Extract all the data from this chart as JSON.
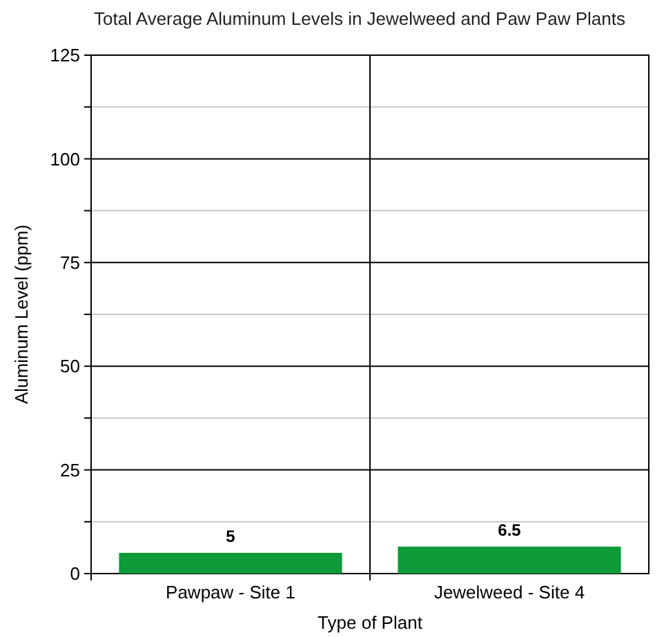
{
  "chart_data": {
    "type": "bar",
    "title": "Total Average Aluminum Levels in Jewelweed and Paw Paw Plants",
    "xlabel": "Type of Plant",
    "ylabel": "Aluminum Level (ppm)",
    "categories": [
      "Pawpaw - Site 1",
      "Jewelweed - Site 4"
    ],
    "values": [
      5,
      6.5
    ],
    "color": "#0f9a3a",
    "data_labels": true,
    "ylim": [
      0,
      125
    ],
    "yticks": [
      0,
      {
        "value": 12.5,
        "label": null
      },
      25,
      {
        "value": 37.5,
        "label": null
      },
      50,
      {
        "value": 62.5,
        "label": null
      },
      75,
      {
        "value": 87.5,
        "label": null
      },
      100,
      {
        "value": 112.5,
        "label": null
      },
      125
    ],
    "grid": true
  }
}
